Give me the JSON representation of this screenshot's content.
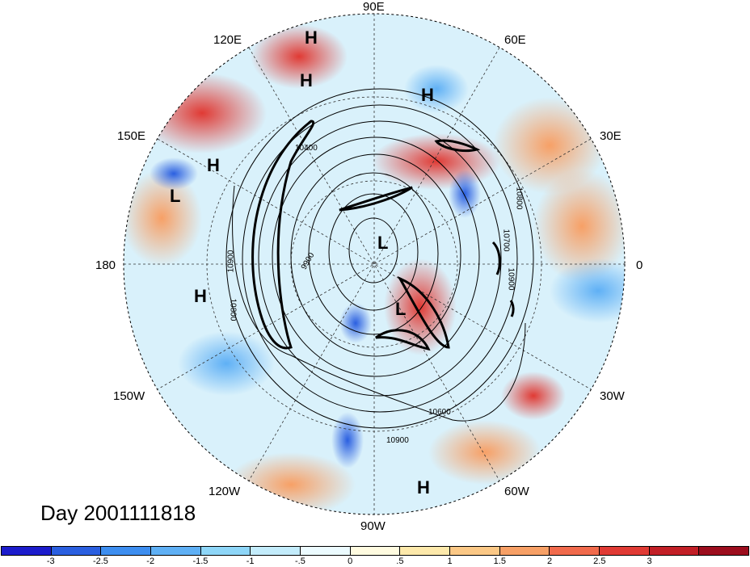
{
  "map": {
    "center_label": "90E",
    "longitude_labels": [
      {
        "id": "lon-90e",
        "text": "90E"
      },
      {
        "id": "lon-60e",
        "text": "60E"
      },
      {
        "id": "lon-120e",
        "text": "120E"
      },
      {
        "id": "lon-30e",
        "text": "30E"
      },
      {
        "id": "lon-150e",
        "text": "150E"
      },
      {
        "id": "lon-180",
        "text": "180"
      },
      {
        "id": "lon-0",
        "text": "0"
      },
      {
        "id": "lon-150w",
        "text": "150W"
      },
      {
        "id": "lon-30w",
        "text": "30W"
      },
      {
        "id": "lon-120w",
        "text": "120W"
      },
      {
        "id": "lon-60w",
        "text": "60W"
      },
      {
        "id": "lon-90w",
        "text": "90W"
      }
    ],
    "pressure_systems": [
      "H",
      "H",
      "H",
      "H",
      "L",
      "H",
      "L",
      "L",
      "H"
    ],
    "contour_labels": [
      "10800",
      "10700",
      "10900",
      "10600",
      "10800",
      "10900",
      "10900",
      "10400",
      "9900"
    ]
  },
  "title": "Day 2001111818",
  "colorbar": {
    "colors": [
      "#1c1ccc",
      "#2a5fe0",
      "#3d8ef0",
      "#5fb0f5",
      "#8ed6f8",
      "#c3ecfb",
      "#ecfbff",
      "#fffbe0",
      "#fde9ab",
      "#fbc886",
      "#f7a066",
      "#f16a4c",
      "#e03a34",
      "#c21f26",
      "#9c0d1d"
    ],
    "ticks": [
      "-3",
      "-2.5",
      "-2",
      "-1.5",
      "-1",
      "-.5",
      "0",
      ".5",
      "1",
      "1.5",
      "2",
      "2.5",
      "3"
    ]
  }
}
